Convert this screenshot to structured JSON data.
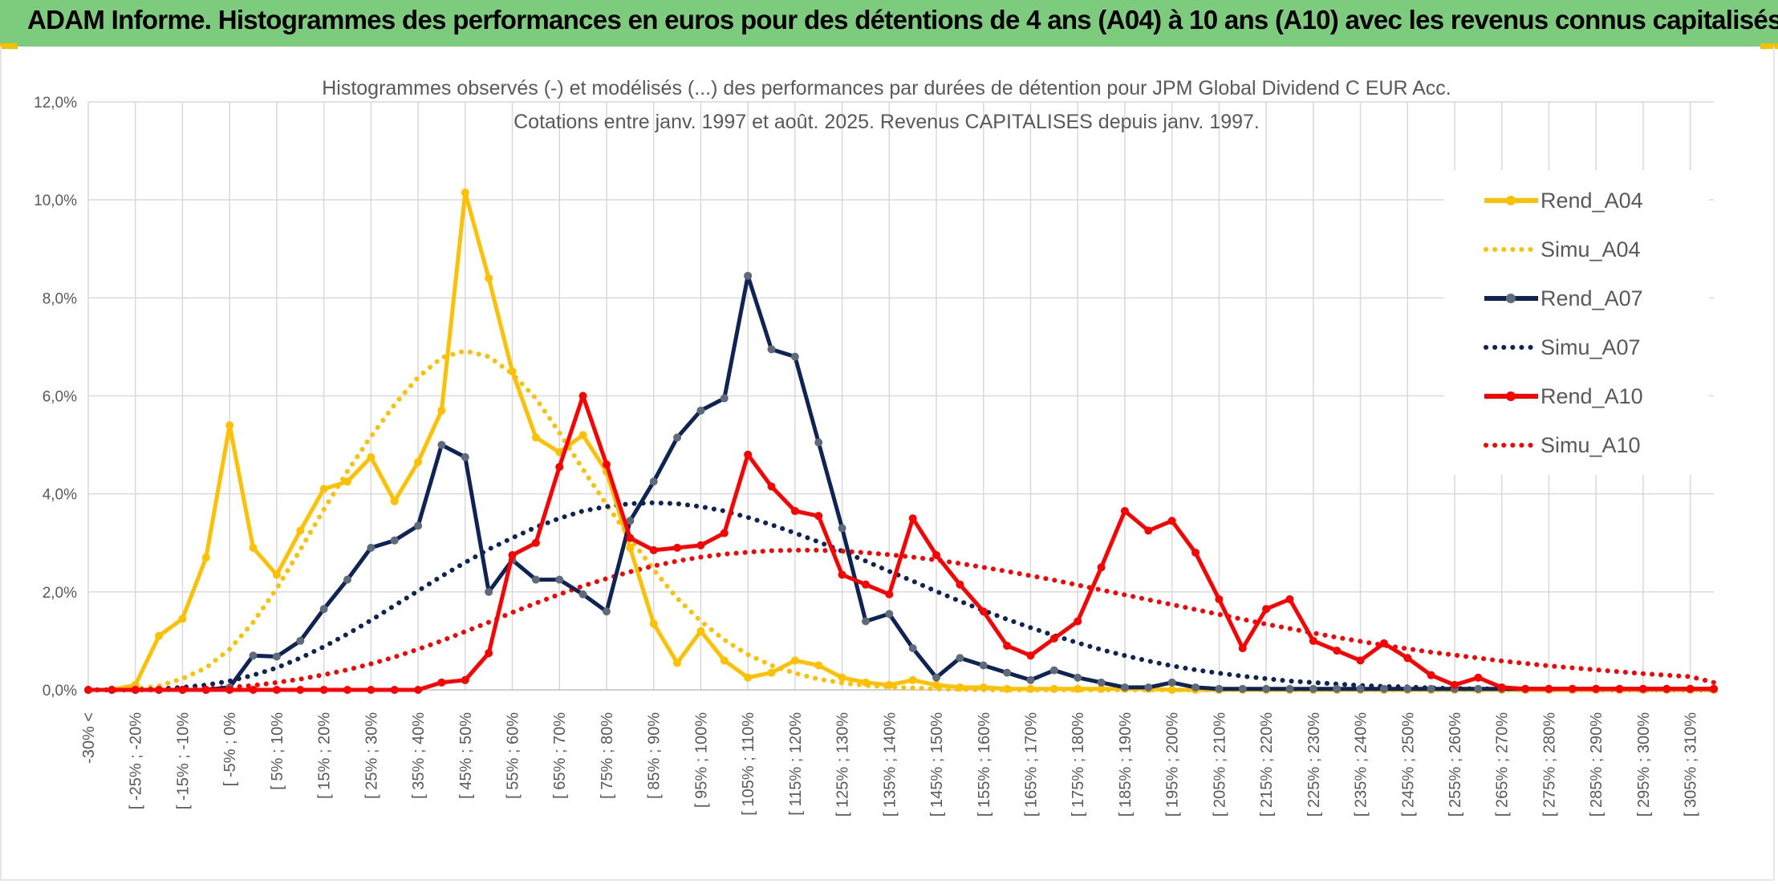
{
  "header": {
    "title": "ADAM Informe. Histogrammes des performances en euros pour des détentions de 4 ans (A04) à 10 ans (A10) avec les revenus connus capitalisés"
  },
  "chart_data": {
    "type": "line",
    "title": "Histogrammes observés (-) et modélisés (...) des performances par durées de détention pour JPM Global Dividend C EUR Acc.",
    "subtitle": "Cotations entre janv. 1997 et août. 2025. Revenus CAPITALISES depuis janv. 1997.",
    "ylim": [
      0,
      12
    ],
    "y_ticks": [
      "0,0%",
      "2,0%",
      "4,0%",
      "6,0%",
      "8,0%",
      "10,0%",
      "12,0%"
    ],
    "grid": true,
    "legend_position": "right",
    "x_labels": [
      "-30% <",
      "[ -25% ; -20%",
      "[ -15% ; -10%",
      "[ -5% ; 0%",
      "[ 5% ; 10%",
      "[ 15% ; 20%",
      "[ 25% ; 30%",
      "[ 35% ; 40%",
      "[ 45% ; 50%",
      "[ 55% ; 60%",
      "[ 65% ; 70%",
      "[ 75% ; 80%",
      "[ 85% ; 90%",
      "[ 95% ; 100%",
      "[ 105% ; 110%",
      "[ 115% ; 120%",
      "[ 125% ; 130%",
      "[ 135% ; 140%",
      "[ 145% ; 150%",
      "[ 155% ; 160%",
      "[ 165% ; 170%",
      "[ 175% ; 180%",
      "[ 185% ; 190%",
      "[ 195% ; 200%",
      "[ 205% ; 210%",
      "[ 215% ; 220%",
      "[ 225% ; 230%",
      "[ 235% ; 240%",
      "[ 245% ; 250%",
      "[ 255% ; 260%",
      "[ 265% ; 270%",
      "[ 275% ; 280%",
      "[ 285% ; 290%",
      "[ 295% ; 300%",
      "[ 305% ; 310%"
    ],
    "x_label_every": 2,
    "series": [
      {
        "name": "Rend_A04",
        "style": "solid",
        "color": "#ffc000",
        "marker_color": "#ffc000",
        "values": [
          0,
          0,
          0.1,
          1.1,
          1.45,
          2.7,
          5.4,
          2.9,
          2.35,
          3.25,
          4.1,
          4.25,
          4.75,
          3.85,
          4.65,
          5.7,
          10.15,
          8.4,
          6.5,
          5.15,
          4.85,
          5.2,
          4.45,
          2.9,
          1.35,
          0.55,
          1.2,
          0.6,
          0.25,
          0.35,
          0.6,
          0.5,
          0.25,
          0.15,
          0.1,
          0.2,
          0.1,
          0.05,
          0.05,
          0.02,
          0.02,
          0.02,
          0.02,
          0.02,
          0.02,
          0.02,
          0,
          0,
          0,
          0,
          0,
          0,
          0,
          0,
          0,
          0,
          0,
          0,
          0,
          0,
          0,
          0,
          0,
          0,
          0,
          0,
          0,
          0,
          0,
          0
        ]
      },
      {
        "name": "Simu_A04",
        "style": "dotted",
        "color": "#ffc000",
        "values": [
          0,
          0,
          0.02,
          0.08,
          0.23,
          0.45,
          0.83,
          1.38,
          2.07,
          2.86,
          3.68,
          4.46,
          5.17,
          5.82,
          6.38,
          6.78,
          6.92,
          6.8,
          6.45,
          5.95,
          5.25,
          4.5,
          3.78,
          3.1,
          2.45,
          1.87,
          1.4,
          1.02,
          0.72,
          0.5,
          0.34,
          0.22,
          0.14,
          0.09,
          0.06,
          0.04,
          0.02,
          0.01,
          0,
          0,
          0,
          0,
          0,
          0,
          0,
          0,
          0,
          0,
          0,
          0,
          0,
          0,
          0,
          0,
          0,
          0,
          0,
          0,
          0,
          0,
          0,
          0,
          0,
          0,
          0,
          0,
          0,
          0,
          0,
          0
        ]
      },
      {
        "name": "Rend_A07",
        "style": "solid",
        "color": "#0e2356",
        "marker_color": "#5f6b7a",
        "values": [
          0,
          0,
          0,
          0,
          0,
          0,
          0.05,
          0.7,
          0.68,
          1.0,
          1.65,
          2.25,
          2.9,
          3.05,
          3.35,
          5.0,
          4.75,
          2.0,
          2.65,
          2.25,
          2.25,
          1.95,
          1.6,
          3.45,
          4.25,
          5.15,
          5.7,
          5.95,
          8.45,
          6.95,
          6.8,
          5.05,
          3.3,
          1.4,
          1.55,
          0.85,
          0.25,
          0.65,
          0.5,
          0.35,
          0.2,
          0.4,
          0.25,
          0.15,
          0.05,
          0.05,
          0.15,
          0.05,
          0.02,
          0.02,
          0.02,
          0.02,
          0.02,
          0.02,
          0.02,
          0.02,
          0.02,
          0.02,
          0.02,
          0.02,
          0.02,
          0.02,
          0.02,
          0.02,
          0.02,
          0.02,
          0.02,
          0.02,
          0.02,
          0.02
        ]
      },
      {
        "name": "Simu_A07",
        "style": "dotted",
        "color": "#0e2356",
        "values": [
          0,
          0,
          0,
          0.02,
          0.05,
          0.1,
          0.18,
          0.3,
          0.45,
          0.65,
          0.88,
          1.14,
          1.42,
          1.72,
          2.02,
          2.32,
          2.6,
          2.87,
          3.1,
          3.32,
          3.5,
          3.65,
          3.74,
          3.8,
          3.82,
          3.8,
          3.74,
          3.65,
          3.52,
          3.37,
          3.2,
          3.02,
          2.83,
          2.63,
          2.42,
          2.22,
          2.01,
          1.81,
          1.62,
          1.44,
          1.27,
          1.11,
          0.96,
          0.82,
          0.7,
          0.59,
          0.49,
          0.41,
          0.34,
          0.28,
          0.23,
          0.18,
          0.15,
          0.12,
          0.09,
          0.07,
          0.06,
          0.04,
          0.03,
          0.02,
          0.02,
          0.01,
          0.01,
          0.01,
          0,
          0,
          0,
          0,
          0,
          0
        ]
      },
      {
        "name": "Rend_A10",
        "style": "solid",
        "color": "#ff0000",
        "marker_color": "#ff0000",
        "values": [
          0,
          0,
          0,
          0,
          0,
          0,
          0,
          0,
          0,
          0,
          0,
          0,
          0,
          0,
          0,
          0.15,
          0.2,
          0.75,
          2.75,
          3.0,
          4.55,
          6.0,
          4.6,
          3.1,
          2.85,
          2.9,
          2.95,
          3.2,
          4.8,
          4.15,
          3.65,
          3.55,
          2.35,
          2.15,
          1.95,
          3.5,
          2.75,
          2.15,
          1.6,
          0.9,
          0.7,
          1.05,
          1.4,
          2.5,
          3.65,
          3.25,
          3.45,
          2.8,
          1.85,
          0.85,
          1.65,
          1.85,
          1.0,
          0.8,
          0.6,
          0.95,
          0.65,
          0.3,
          0.1,
          0.25,
          0.05,
          0.02,
          0.02,
          0.02,
          0.02,
          0.02,
          0.02,
          0.02,
          0.02,
          0.02
        ]
      },
      {
        "name": "Simu_A10",
        "style": "dotted",
        "color": "#ff0000",
        "values": [
          0,
          0,
          0,
          0,
          0.01,
          0.02,
          0.05,
          0.09,
          0.15,
          0.22,
          0.31,
          0.41,
          0.53,
          0.67,
          0.83,
          1.0,
          1.19,
          1.38,
          1.58,
          1.77,
          1.95,
          2.12,
          2.27,
          2.41,
          2.53,
          2.63,
          2.71,
          2.77,
          2.81,
          2.84,
          2.85,
          2.85,
          2.83,
          2.8,
          2.76,
          2.71,
          2.65,
          2.58,
          2.5,
          2.42,
          2.33,
          2.24,
          2.14,
          2.04,
          1.94,
          1.84,
          1.74,
          1.64,
          1.54,
          1.44,
          1.34,
          1.25,
          1.16,
          1.07,
          0.99,
          0.91,
          0.84,
          0.77,
          0.71,
          0.65,
          0.59,
          0.54,
          0.49,
          0.45,
          0.41,
          0.37,
          0.33,
          0.3,
          0.27,
          0.15
        ]
      }
    ]
  }
}
